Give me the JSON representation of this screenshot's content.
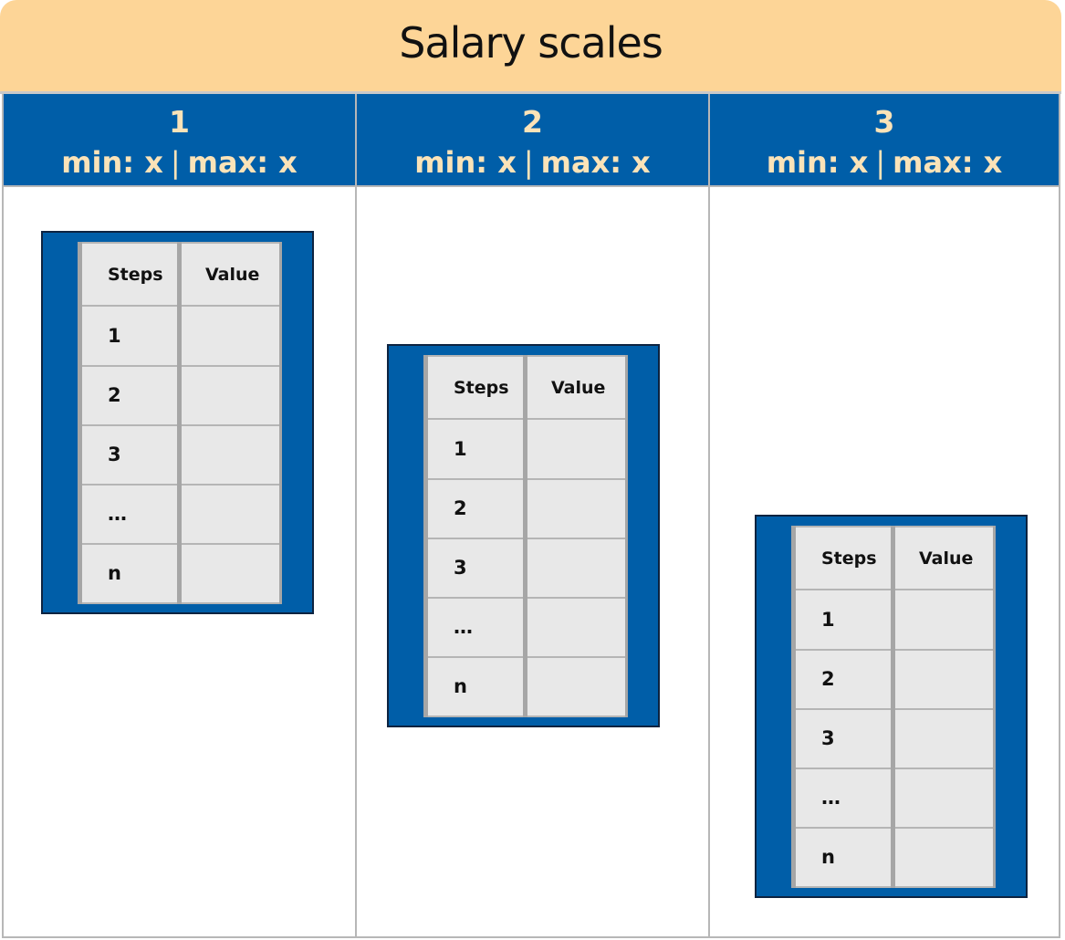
{
  "title": "Salary scales",
  "columns": [
    {
      "number": "1",
      "min_label": "min: x",
      "separator": "|",
      "max_label": "max: x"
    },
    {
      "number": "2",
      "min_label": "min: x",
      "separator": "|",
      "max_label": "max: x"
    },
    {
      "number": "3",
      "min_label": "min: x",
      "separator": "|",
      "max_label": "max: x"
    }
  ],
  "table": {
    "header_steps": "Steps",
    "header_value": "Value",
    "rows": [
      "1",
      "2",
      "3",
      "…",
      "n"
    ]
  },
  "colors": {
    "title_background": "#fdd597",
    "header_blue": "#005ea8",
    "header_text": "#fbe3b8",
    "table_cell": "#e8e8e8"
  }
}
